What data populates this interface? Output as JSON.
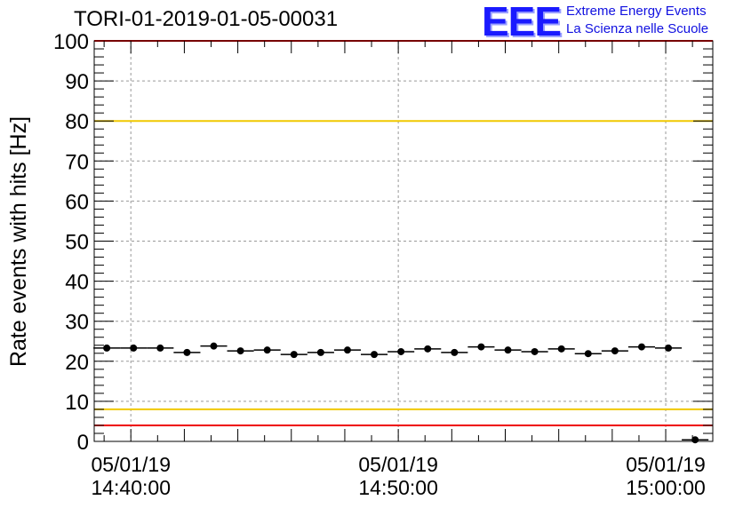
{
  "title": "TORI-01-2019-01-05-00031",
  "logo": {
    "mark": "EEE",
    "line1": "Extreme Energy Events",
    "line2": "La Scienza nelle Scuole",
    "color": "#1a1aff"
  },
  "chart_data": {
    "type": "scatter",
    "ylabel": "Rate events with hits [Hz]",
    "ylim": [
      0,
      100
    ],
    "yticks": [
      0,
      10,
      20,
      30,
      40,
      50,
      60,
      70,
      80,
      90,
      100
    ],
    "x_tick_labels": [
      {
        "date": "05/01/19",
        "time": "14:40:00"
      },
      {
        "date": "05/01/19",
        "time": "14:50:00"
      },
      {
        "date": "05/01/19",
        "time": "15:00:00"
      }
    ],
    "x_range_minutes_from_first_label": [
      -1.37,
      21.76
    ],
    "grid": true,
    "threshold_lines": [
      {
        "value": 80,
        "color": "#f0c800"
      },
      {
        "value": 8,
        "color": "#f0c800"
      },
      {
        "value": 100,
        "color": "#ee0000"
      },
      {
        "value": 4,
        "color": "#ee0000"
      }
    ],
    "series": [
      {
        "x_minutes": [
          -0.9,
          0.1,
          1.1,
          2.1,
          3.1,
          4.1,
          5.1,
          6.1,
          7.1,
          8.1,
          9.1,
          10.1,
          11.1,
          12.1,
          13.1,
          14.1,
          15.1,
          16.1,
          17.1,
          18.1,
          19.1,
          20.1,
          21.1
        ],
        "values": [
          23.3,
          23.3,
          23.3,
          22.2,
          23.8,
          22.6,
          22.8,
          21.7,
          22.2,
          22.8,
          21.7,
          22.4,
          23.1,
          22.2,
          23.6,
          22.8,
          22.4,
          23.1,
          21.9,
          22.6,
          23.6,
          23.3,
          0.4
        ],
        "bin_width_minutes": 1.0
      }
    ]
  }
}
